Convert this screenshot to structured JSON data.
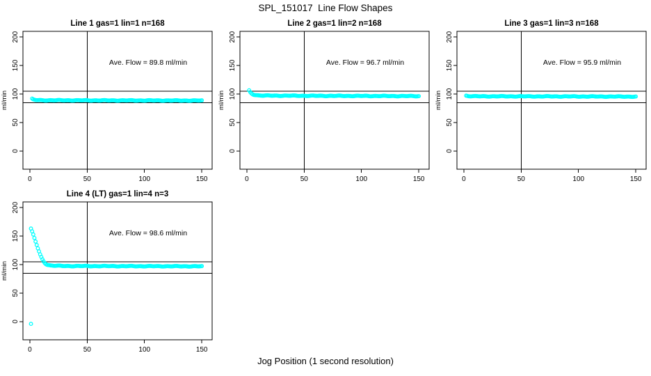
{
  "title": "SPL_151017  Line Flow Shapes",
  "xlabel": "Jog Position (1 second resolution)",
  "colors": {
    "points": "#00ffff",
    "axis": "#000000",
    "background": "#ffffff"
  },
  "chart_data": [
    {
      "type": "scatter",
      "title": "Line 1 gas=1 lin=1 n=168",
      "annotation": "Ave. Flow =  89.8  ml/min",
      "ave_flow": 89.8,
      "ylabel": "ml/min",
      "xticks": [
        0,
        50,
        100,
        150
      ],
      "yticks": [
        0,
        50,
        100,
        150,
        200
      ],
      "xlim": [
        -6,
        159
      ],
      "ylim": [
        -32,
        210
      ],
      "ref_hlines": [
        105,
        85
      ],
      "ref_vline": 50,
      "grid": false,
      "keypoints": [
        [
          2,
          91.5
        ],
        [
          3,
          90.2
        ],
        [
          5,
          89.4
        ],
        [
          10,
          89.0
        ],
        [
          60,
          88.8
        ],
        [
          150,
          88.5
        ]
      ],
      "extra_points": []
    },
    {
      "type": "scatter",
      "title": "Line 2 gas=1 lin=2 n=168",
      "annotation": "Ave. Flow =  96.7  ml/min",
      "ave_flow": 96.7,
      "ylabel": "ml/min",
      "xticks": [
        0,
        50,
        100,
        150
      ],
      "yticks": [
        0,
        50,
        100,
        150,
        200
      ],
      "xlim": [
        -6,
        159
      ],
      "ylim": [
        -32,
        210
      ],
      "ref_hlines": [
        105,
        85
      ],
      "ref_vline": 50,
      "grid": false,
      "keypoints": [
        [
          2,
          106
        ],
        [
          3,
          103
        ],
        [
          4,
          101
        ],
        [
          5,
          99.8
        ],
        [
          6,
          99.0
        ],
        [
          8,
          98.1
        ],
        [
          10,
          97.6
        ],
        [
          15,
          97.2
        ],
        [
          60,
          96.8
        ],
        [
          150,
          96.3
        ]
      ],
      "extra_points": []
    },
    {
      "type": "scatter",
      "title": "Line 3 gas=1 lin=3 n=168",
      "annotation": "Ave. Flow =  95.9  ml/min",
      "ave_flow": 95.9,
      "ylabel": "ml/min",
      "xticks": [
        0,
        50,
        100,
        150
      ],
      "yticks": [
        0,
        50,
        100,
        150,
        200
      ],
      "xlim": [
        -6,
        159
      ],
      "ylim": [
        -32,
        210
      ],
      "ref_hlines": [
        105,
        85
      ],
      "ref_vline": 50,
      "grid": false,
      "keypoints": [
        [
          2,
          97.0
        ],
        [
          4,
          96.4
        ],
        [
          10,
          96.0
        ],
        [
          80,
          95.8
        ],
        [
          150,
          95.4
        ]
      ],
      "extra_points": []
    },
    {
      "type": "scatter",
      "title": "Line 4 (LT) gas=1 lin=4 n=3",
      "annotation": "Ave. Flow =  98.6  ml/min",
      "ave_flow": 98.6,
      "ylabel": "ml/min",
      "xticks": [
        0,
        50,
        100,
        150
      ],
      "yticks": [
        0,
        50,
        100,
        150,
        200
      ],
      "xlim": [
        -6,
        159
      ],
      "ylim": [
        -32,
        210
      ],
      "ref_hlines": [
        105,
        85
      ],
      "ref_vline": 50,
      "grid": false,
      "keypoints": [
        [
          1,
          163
        ],
        [
          2,
          158
        ],
        [
          3,
          152.5
        ],
        [
          4,
          146.5
        ],
        [
          5,
          140.5
        ],
        [
          6,
          134.5
        ],
        [
          7,
          128.5
        ],
        [
          8,
          123
        ],
        [
          9,
          117.5
        ],
        [
          10,
          113
        ],
        [
          11,
          109
        ],
        [
          12,
          105.8
        ],
        [
          13,
          103.2
        ],
        [
          14,
          101.3
        ],
        [
          15,
          100.0
        ],
        [
          16,
          99.3
        ],
        [
          18,
          98.5
        ],
        [
          22,
          98.0
        ],
        [
          30,
          97.5
        ],
        [
          150,
          97.0
        ]
      ],
      "extra_points": [
        [
          1,
          -4
        ]
      ]
    }
  ]
}
